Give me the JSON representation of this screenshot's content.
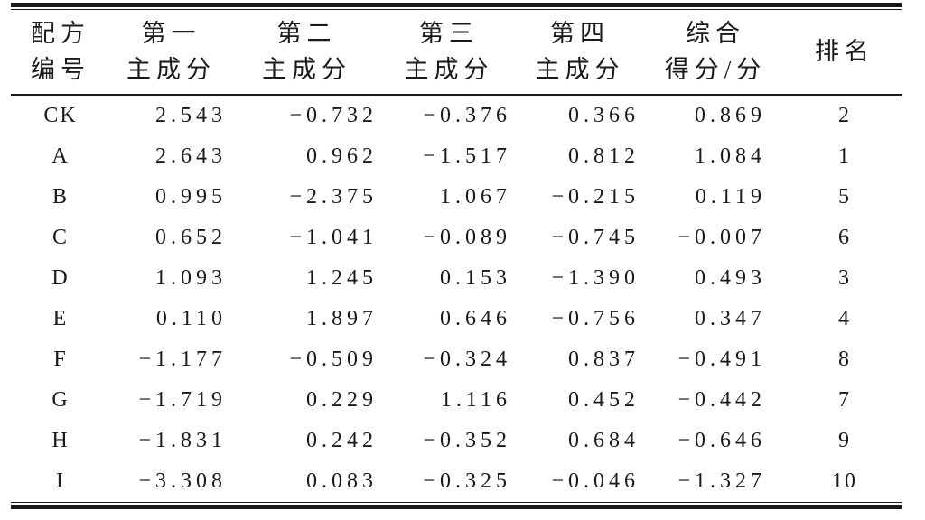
{
  "page": {
    "background_color": "#ffffff",
    "text_color": "#1a1a1a",
    "style": "three-line academic table (thick-thin top rule, thin-thick bottom rule)"
  },
  "table": {
    "header": [
      {
        "line1": "配方",
        "line2": "编号"
      },
      {
        "line1": "第一",
        "line2": "主成分"
      },
      {
        "line1": "第二",
        "line2": "主成分"
      },
      {
        "line1": "第三",
        "line2": "主成分"
      },
      {
        "line1": "第四",
        "line2": "主成分"
      },
      {
        "line1": "综合",
        "line2": "得分/分"
      },
      {
        "line1": "排名"
      }
    ],
    "rows": [
      [
        "CK",
        "2.543",
        "−0.732",
        "−0.376",
        "0.366",
        "0.869",
        "2"
      ],
      [
        "A",
        "2.643",
        "0.962",
        "−1.517",
        "0.812",
        "1.084",
        "1"
      ],
      [
        "B",
        "0.995",
        "−2.375",
        "1.067",
        "−0.215",
        "0.119",
        "5"
      ],
      [
        "C",
        "0.652",
        "−1.041",
        "−0.089",
        "−0.745",
        "−0.007",
        "6"
      ],
      [
        "D",
        "1.093",
        "1.245",
        "0.153",
        "−1.390",
        "0.493",
        "3"
      ],
      [
        "E",
        "0.110",
        "1.897",
        "0.646",
        "−0.756",
        "0.347",
        "4"
      ],
      [
        "F",
        "−1.177",
        "−0.509",
        "−0.324",
        "0.837",
        "−0.491",
        "8"
      ],
      [
        "G",
        "−1.719",
        "0.229",
        "1.116",
        "0.452",
        "−0.442",
        "7"
      ],
      [
        "H",
        "−1.831",
        "0.242",
        "−0.352",
        "0.684",
        "−0.646",
        "9"
      ],
      [
        "I",
        "−3.308",
        "0.083",
        "−0.325",
        "−0.046",
        "−1.327",
        "10"
      ]
    ]
  },
  "chart_data": {
    "type": "table",
    "columns": [
      "配方编号",
      "第一主成分",
      "第二主成分",
      "第三主成分",
      "第四主成分",
      "综合得分/分",
      "排名"
    ],
    "records": [
      {
        "配方编号": "CK",
        "第一主成分": 2.543,
        "第二主成分": -0.732,
        "第三主成分": -0.376,
        "第四主成分": 0.366,
        "综合得分/分": 0.869,
        "排名": 2
      },
      {
        "配方编号": "A",
        "第一主成分": 2.643,
        "第二主成分": 0.962,
        "第三主成分": -1.517,
        "第四主成分": 0.812,
        "综合得分/分": 1.084,
        "排名": 1
      },
      {
        "配方编号": "B",
        "第一主成分": 0.995,
        "第二主成分": -2.375,
        "第三主成分": 1.067,
        "第四主成分": -0.215,
        "综合得分/分": 0.119,
        "排名": 5
      },
      {
        "配方编号": "C",
        "第一主成分": 0.652,
        "第二主成分": -1.041,
        "第三主成分": -0.089,
        "第四主成分": -0.745,
        "综合得分/分": -0.007,
        "排名": 6
      },
      {
        "配方编号": "D",
        "第一主成分": 1.093,
        "第二主成分": 1.245,
        "第三主成分": 0.153,
        "第四主成分": -1.39,
        "综合得分/分": 0.493,
        "排名": 3
      },
      {
        "配方编号": "E",
        "第一主成分": 0.11,
        "第二主成分": 1.897,
        "第三主成分": 0.646,
        "第四主成分": -0.756,
        "综合得分/分": 0.347,
        "排名": 4
      },
      {
        "配方编号": "F",
        "第一主成分": -1.177,
        "第二主成分": -0.509,
        "第三主成分": -0.324,
        "第四主成分": 0.837,
        "综合得分/分": -0.491,
        "排名": 8
      },
      {
        "配方编号": "G",
        "第一主成分": -1.719,
        "第二主成分": 0.229,
        "第三主成分": 1.116,
        "第四主成分": 0.452,
        "综合得分/分": -0.442,
        "排名": 7
      },
      {
        "配方编号": "H",
        "第一主成分": -1.831,
        "第二主成分": 0.242,
        "第三主成分": -0.352,
        "第四主成分": 0.684,
        "综合得分/分": -0.646,
        "排名": 9
      },
      {
        "配方编号": "I",
        "第一主成分": -3.308,
        "第二主成分": 0.083,
        "第三主成分": -0.325,
        "第四主成分": -0.046,
        "综合得分/分": -1.327,
        "排名": 10
      }
    ]
  }
}
